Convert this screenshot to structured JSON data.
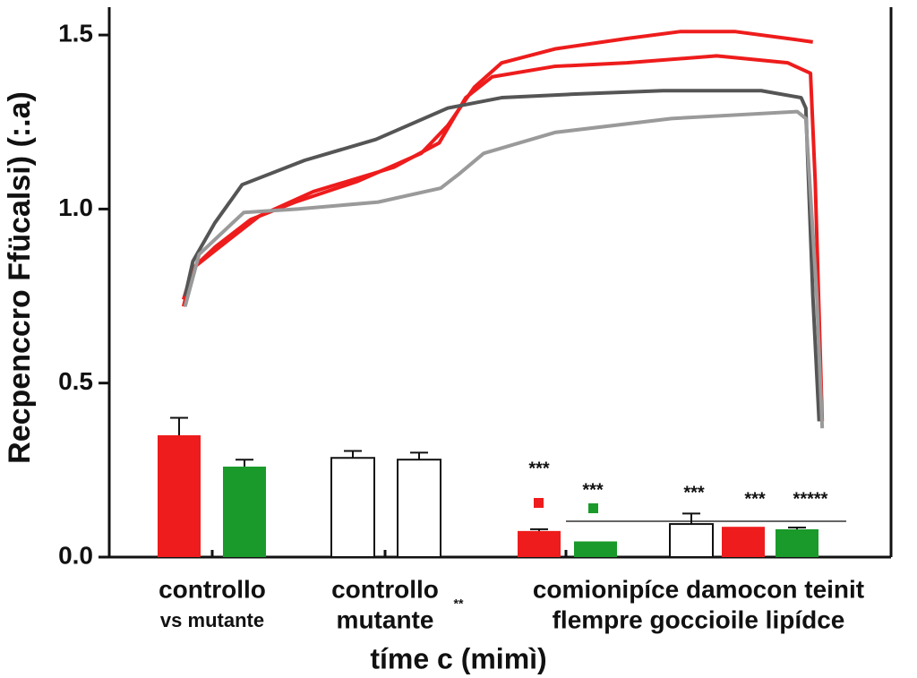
{
  "chart_data": [
    {
      "type": "line",
      "ylabel": "Recpenccro Ffücalsi) (:.a)",
      "ylim": [
        0,
        1.58
      ],
      "yticks": [
        {
          "value": 0,
          "label": "0.0"
        },
        0.5,
        {
          "value": 1,
          "label": "1.0"
        },
        1.5
      ],
      "xlim": [
        0,
        100
      ],
      "series": [
        {
          "color": "#ee1c1c",
          "x": [
            9.5,
            10.7,
            13.5,
            18.1,
            23.8,
            31.8,
            39.9,
            43.3,
            46.7,
            50.2,
            57.0,
            66.2,
            73.1,
            80.0,
            86.8,
            90.0
          ],
          "values": [
            0.74,
            0.83,
            0.89,
            0.97,
            1.02,
            1.08,
            1.16,
            1.24,
            1.35,
            1.42,
            1.46,
            1.49,
            1.51,
            1.51,
            1.49,
            1.48
          ]
        },
        {
          "color": "#ee1c1c",
          "x": [
            9.5,
            10.7,
            13.5,
            19.2,
            26.1,
            36.4,
            42.2,
            45.6,
            49.0,
            57.0,
            66.2,
            77.7,
            86.8,
            89.7,
            90.3,
            91.2
          ],
          "values": [
            0.72,
            0.83,
            0.88,
            0.98,
            1.05,
            1.12,
            1.19,
            1.32,
            1.38,
            1.41,
            1.42,
            1.44,
            1.42,
            1.39,
            1.08,
            0.39
          ]
        },
        {
          "color": "#555555",
          "x": [
            9.7,
            10.7,
            13.5,
            17.0,
            25.0,
            34.1,
            43.3,
            50.2,
            59.3,
            70.8,
            83.4,
            88.5,
            89.1,
            90.0,
            90.8
          ],
          "values": [
            0.75,
            0.85,
            0.96,
            1.07,
            1.14,
            1.2,
            1.29,
            1.32,
            1.33,
            1.34,
            1.34,
            1.32,
            1.29,
            0.75,
            0.39
          ]
        },
        {
          "color": "#9a9a9a",
          "x": [
            9.7,
            11.5,
            17.2,
            24.1,
            34.4,
            42.4,
            44.7,
            47.9,
            57.0,
            71.9,
            88.0,
            89.1,
            90.5,
            91.2
          ],
          "values": [
            0.72,
            0.87,
            0.99,
            1.0,
            1.02,
            1.06,
            1.1,
            1.16,
            1.22,
            1.26,
            1.28,
            1.26,
            0.75,
            0.37
          ]
        }
      ]
    },
    {
      "type": "bar",
      "xlabel": "tíme c (mimì)",
      "groups": [
        [
          "controllo",
          "vs mutante"
        ],
        [
          "controllo",
          "mutante"
        ],
        [
          "comionipíce damocon teinit",
          "flempre goccioile lipídce"
        ]
      ],
      "values": [
        0.35,
        0.26,
        0.285,
        0.28,
        0.075,
        0.045,
        0.095,
        0.087,
        0.08
      ],
      "errors": [
        0.05,
        0.02,
        0.02,
        0.02,
        0.005,
        null,
        0.03,
        null,
        0.005
      ],
      "colors": [
        "#ee1c1c",
        "#1a9a2a",
        "#ffffff",
        "#ffffff",
        "#ee1c1c",
        "#1a9a2a",
        "#ffffff",
        "#ee1c1c",
        "#1a9a2a"
      ],
      "annotations": [
        "***",
        "***",
        "***",
        "***",
        "*****",
        "**"
      ]
    }
  ]
}
